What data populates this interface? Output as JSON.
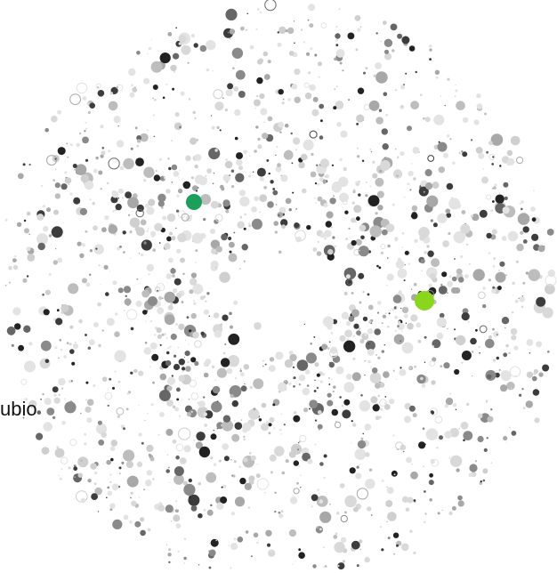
{
  "label": {
    "text": "ubio"
  },
  "highlights": {
    "dark_green": "#1aa05a",
    "light_green": "#8ad61d"
  },
  "palette": {
    "background": "#ffffff",
    "dot_colors": [
      "#e3e3e3",
      "#d9d9d9",
      "#cfcfcf",
      "#bdbdbd",
      "#a8a8a8",
      "#8a8a8a",
      "#666666",
      "#3c3c3c",
      "#222222"
    ]
  }
}
